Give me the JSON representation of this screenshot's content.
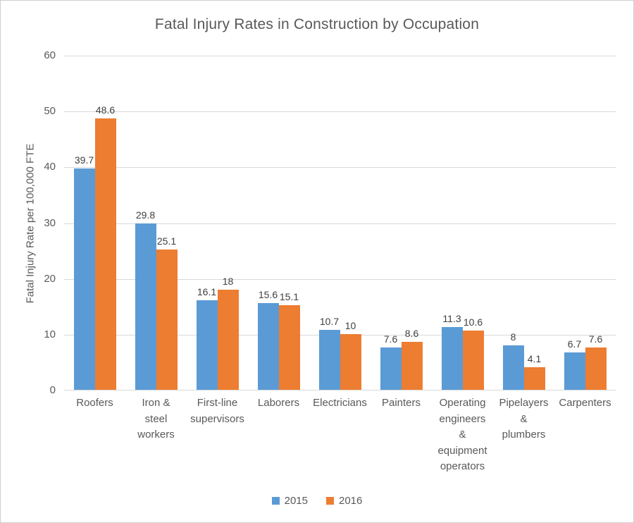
{
  "window": {
    "background": "#ffffff",
    "border_color": "#d0cece"
  },
  "chart_data": {
    "type": "bar",
    "title": "Fatal Injury Rates in Construction by Occupation",
    "xlabel": "",
    "ylabel": "Fatal Injury Rate per 100,000 FTE",
    "ylim": [
      0,
      60
    ],
    "ytick_step": 10,
    "grid": true,
    "legend_position": "bottom",
    "categories": [
      "Roofers",
      "Iron & steel workers",
      "First-line supervisors",
      "Laborers",
      "Electricians",
      "Painters",
      "Operating engineers & equipment operators",
      "Pipelayers & plumbers",
      "Carpenters"
    ],
    "category_labels": [
      "Roofers",
      "Iron &\nsteel\nworkers",
      "First-line\nsupervisors",
      "Laborers",
      "Electricians",
      "Painters",
      "Operating\nengineers\n&\nequipment\noperators",
      "Pipelayers\n&\nplumbers",
      "Carpenters"
    ],
    "series": [
      {
        "name": "2015",
        "color": "#5b9bd5",
        "values": [
          39.7,
          29.8,
          16.1,
          15.6,
          10.7,
          7.6,
          11.3,
          8,
          6.7
        ],
        "labels": [
          "39.7",
          "29.8",
          "16.1",
          "15.6",
          "10.7",
          "7.6",
          "11.3",
          "8",
          "6.7"
        ]
      },
      {
        "name": "2016",
        "color": "#ed7d31",
        "values": [
          48.6,
          25.1,
          18,
          15.1,
          10,
          8.6,
          10.6,
          4.1,
          7.6
        ],
        "labels": [
          "48.6",
          "25.1",
          "18",
          "15.1",
          "10",
          "8.6",
          "10.6",
          "4.1",
          "7.6"
        ]
      }
    ],
    "colors": {
      "gridline": "#d9d9d9",
      "axis_line": "#d9d9d9",
      "text": "#595959",
      "data_label": "#404040"
    }
  }
}
